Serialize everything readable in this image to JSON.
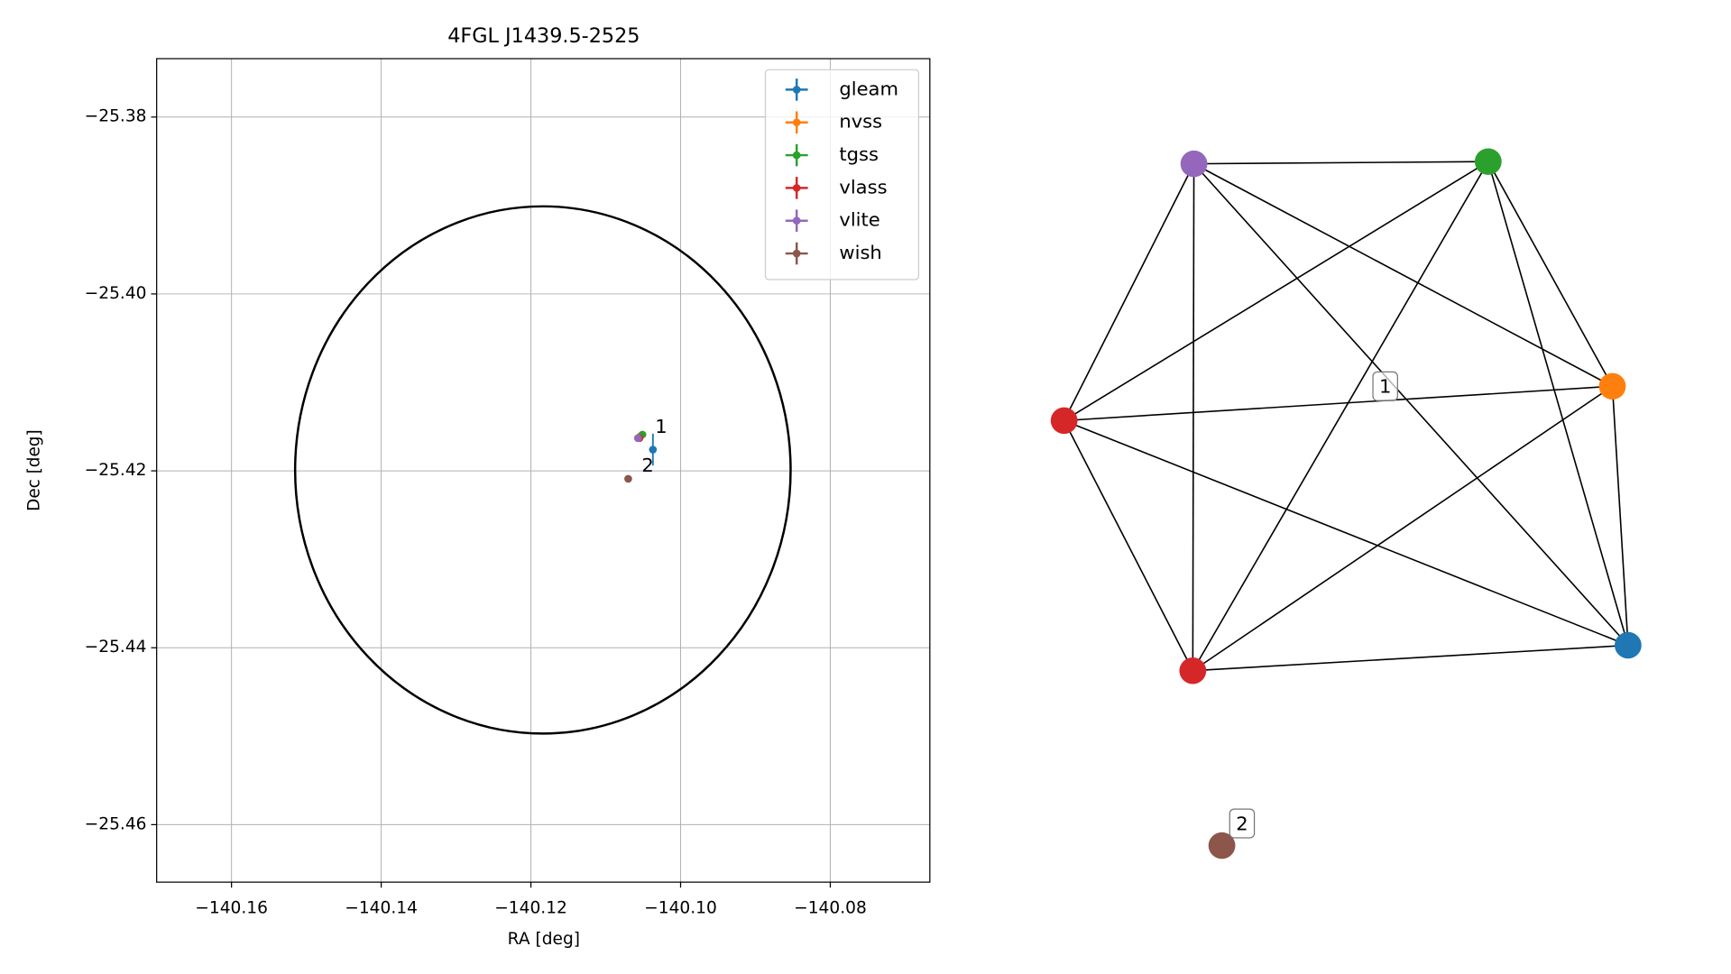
{
  "chart_data": [
    {
      "type": "scatter",
      "title": "4FGL J1439.5-2525",
      "xlabel": "RA [deg]",
      "ylabel": "Dec [deg]",
      "xlim": [
        -140.17,
        -140.0667
      ],
      "ylim": [
        -25.4665,
        -25.3734
      ],
      "grid": true,
      "legend": "upper right",
      "xticks": [
        {
          "value": -140.16,
          "label": "−140.16"
        },
        {
          "value": -140.14,
          "label": "−140.14"
        },
        {
          "value": -140.12,
          "label": "−140.12"
        },
        {
          "value": -140.1,
          "label": "−140.10"
        },
        {
          "value": -140.08,
          "label": "−140.08"
        }
      ],
      "yticks": [
        {
          "value": -25.38,
          "label": "−25.38"
        },
        {
          "value": -25.4,
          "label": "−25.40"
        },
        {
          "value": -25.42,
          "label": "−25.42"
        },
        {
          "value": -25.44,
          "label": "−25.44"
        },
        {
          "value": -25.46,
          "label": "−25.46"
        }
      ],
      "circle": {
        "x": -140.1184,
        "y": -25.4199,
        "rx": 0.0331,
        "ry": 0.0298,
        "color": "#000000"
      },
      "series": [
        {
          "name": "gleam",
          "color": "#1f77b4",
          "x": [
            -140.1037
          ],
          "y": [
            -25.4176
          ],
          "xerr": [
            0.0002
          ],
          "yerr": [
            0.0018
          ]
        },
        {
          "name": "nvss",
          "color": "#ff7f0e",
          "x": [
            -140.1054
          ],
          "y": [
            -25.4161
          ],
          "xerr": [
            0.0002
          ],
          "yerr": [
            0.0002
          ]
        },
        {
          "name": "tgss",
          "color": "#2ca02c",
          "x": [
            -140.1051
          ],
          "y": [
            -25.4159
          ],
          "xerr": [
            0.0002
          ],
          "yerr": [
            0.0003
          ]
        },
        {
          "name": "vlass",
          "color": "#d62728",
          "x": [
            -140.1055
          ],
          "y": [
            -25.4163
          ],
          "xerr": [
            0.0001
          ],
          "yerr": [
            0.0001
          ]
        },
        {
          "name": "vlite",
          "color": "#9467bd",
          "x": [
            -140.1057
          ],
          "y": [
            -25.4163
          ],
          "xerr": [
            0.0002
          ],
          "yerr": [
            0.0002
          ]
        },
        {
          "name": "wish",
          "color": "#8c564b",
          "x": [
            -140.107
          ],
          "y": [
            -25.4209
          ],
          "xerr": [
            0.0001
          ],
          "yerr": [
            0.0001
          ]
        }
      ],
      "annotations": [
        {
          "text": "1",
          "x": -140.1034,
          "y": -25.4151
        },
        {
          "text": "2",
          "x": -140.1052,
          "y": -25.4195
        }
      ]
    },
    {
      "type": "graph",
      "nodes": [
        {
          "color": "#9467bd"
        },
        {
          "color": "#2ca02c"
        },
        {
          "color": "#ff7f0e"
        },
        {
          "color": "#d62728"
        },
        {
          "color": "#d62728"
        },
        {
          "color": "#1f77b4"
        },
        {
          "color": "#8c564b"
        }
      ],
      "edges": [
        [
          0,
          1
        ],
        [
          0,
          2
        ],
        [
          0,
          3
        ],
        [
          0,
          4
        ],
        [
          0,
          5
        ],
        [
          1,
          2
        ],
        [
          1,
          3
        ],
        [
          1,
          4
        ],
        [
          1,
          5
        ],
        [
          2,
          3
        ],
        [
          2,
          4
        ],
        [
          2,
          5
        ],
        [
          3,
          4
        ],
        [
          3,
          5
        ],
        [
          4,
          5
        ]
      ],
      "labels": [
        "1",
        "2"
      ]
    }
  ]
}
